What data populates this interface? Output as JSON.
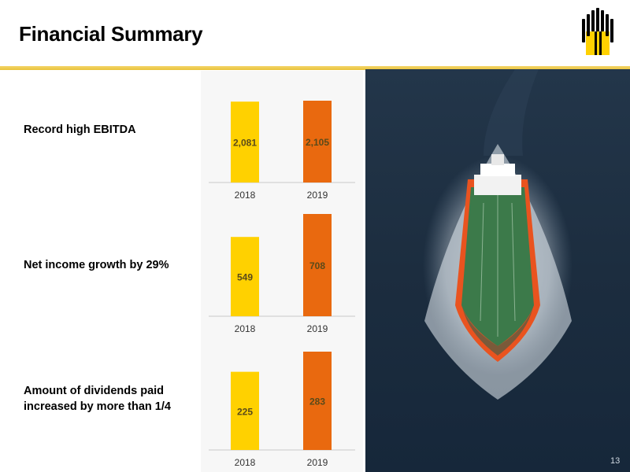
{
  "title": "Financial Summary",
  "page_number": "13",
  "colors": {
    "bar_2018": "#ffd100",
    "bar_2019": "#e9690f",
    "accent_line": "#efcd4f"
  },
  "highlights": [
    {
      "label_lines": [
        "Record high EBITDA"
      ]
    },
    {
      "label_lines": [
        "Net income growth by 29%"
      ]
    },
    {
      "label_lines": [
        "Amount of dividends paid",
        "increased by more than 1/4"
      ]
    }
  ],
  "chart_data": [
    {
      "type": "bar",
      "categories": [
        "2018",
        "2019"
      ],
      "values": [
        2081,
        2105
      ],
      "value_labels": [
        "2,081",
        "2,105"
      ]
    },
    {
      "type": "bar",
      "categories": [
        "2018",
        "2019"
      ],
      "values": [
        549,
        708
      ],
      "value_labels": [
        "549",
        "708"
      ]
    },
    {
      "type": "bar",
      "categories": [
        "2018",
        "2019"
      ],
      "values": [
        225,
        283
      ],
      "value_labels": [
        "225",
        "283"
      ]
    }
  ],
  "icons": {
    "logo": "company-logo-icon",
    "photo": "tanker-ship-photo"
  }
}
